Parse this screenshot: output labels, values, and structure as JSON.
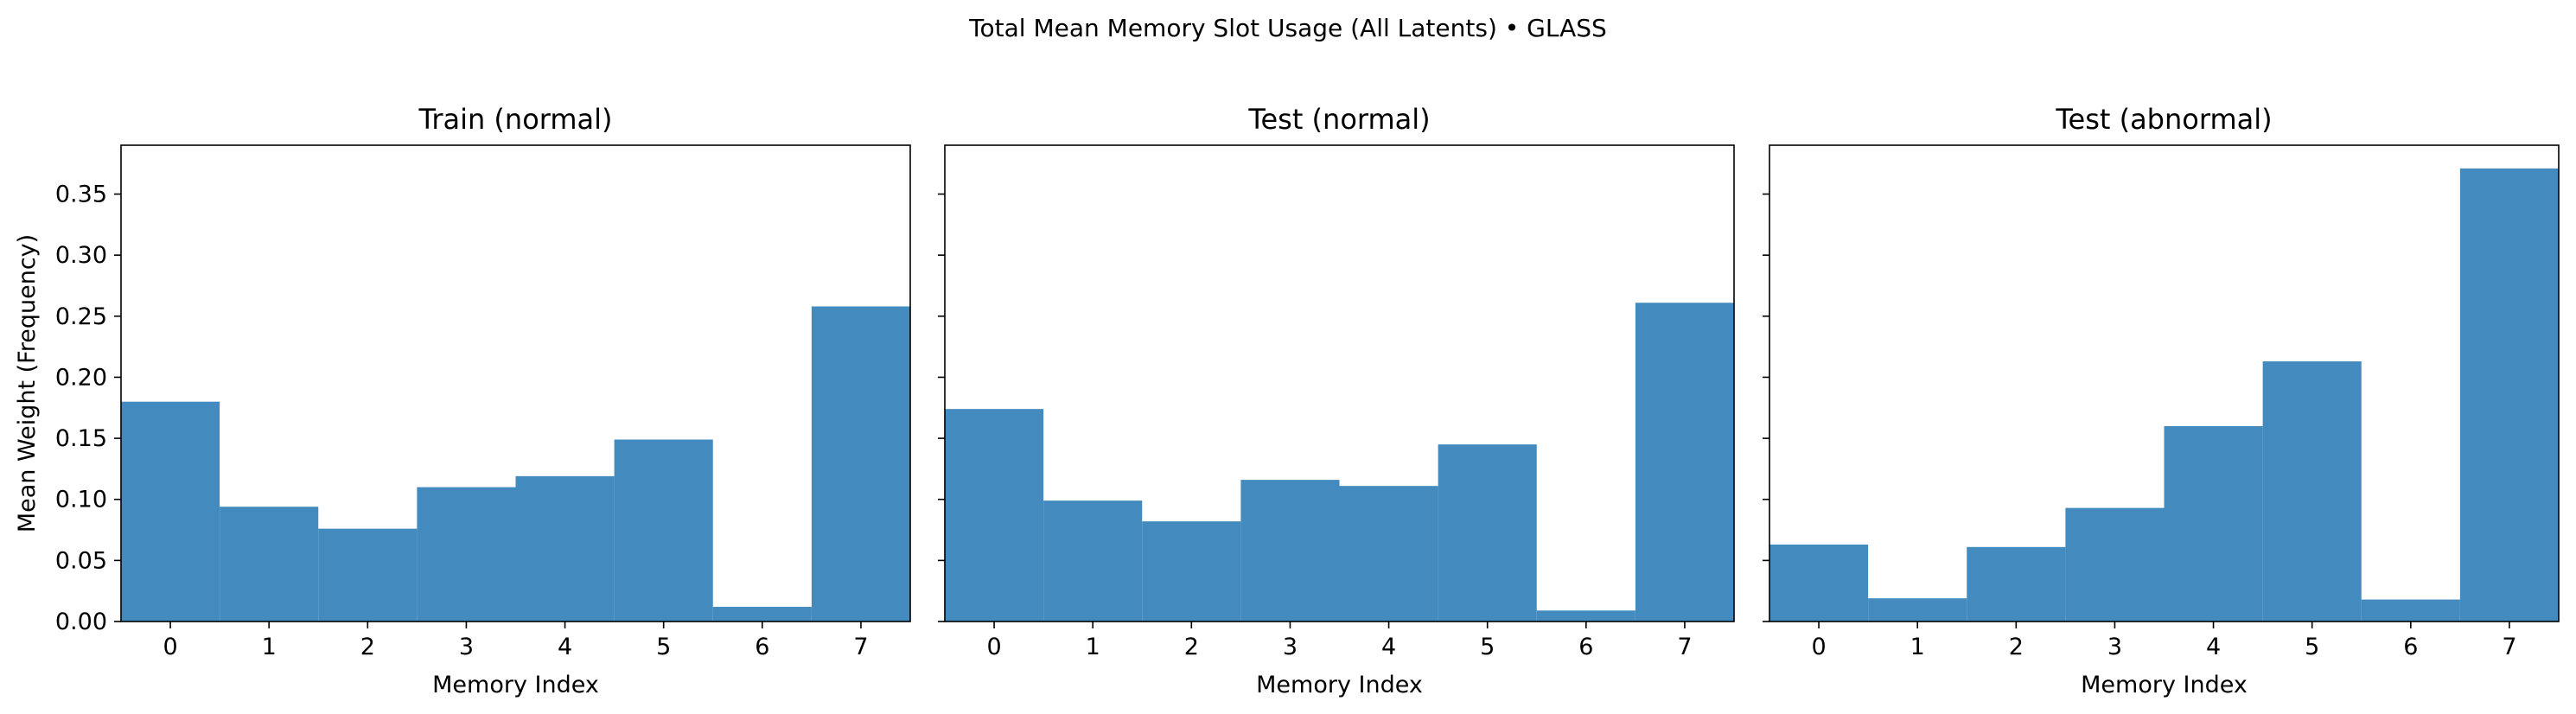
{
  "figure": {
    "suptitle": "Total Mean Memory Slot Usage (All Latents) • GLASS",
    "bar_color": "#438bbf",
    "ylabel": "Mean Weight (Frequency)",
    "xlabel": "Memory Index"
  },
  "chart_data": [
    {
      "type": "bar",
      "title": "Train (normal)",
      "xlabel": "Memory Index",
      "ylabel": "Mean Weight (Frequency)",
      "categories": [
        "0",
        "1",
        "2",
        "3",
        "4",
        "5",
        "6",
        "7"
      ],
      "values": [
        0.18,
        0.094,
        0.076,
        0.11,
        0.119,
        0.149,
        0.012,
        0.258
      ],
      "ylim": [
        0,
        0.39
      ],
      "yticks": [
        "0.00",
        "0.05",
        "0.10",
        "0.15",
        "0.20",
        "0.25",
        "0.30",
        "0.35"
      ],
      "grid": false,
      "legend": "none"
    },
    {
      "type": "bar",
      "title": "Test (normal)",
      "xlabel": "Memory Index",
      "categories": [
        "0",
        "1",
        "2",
        "3",
        "4",
        "5",
        "6",
        "7"
      ],
      "values": [
        0.174,
        0.099,
        0.082,
        0.116,
        0.111,
        0.145,
        0.009,
        0.261
      ],
      "ylim": [
        0,
        0.39
      ],
      "grid": false,
      "legend": "none"
    },
    {
      "type": "bar",
      "title": "Test (abnormal)",
      "xlabel": "Memory Index",
      "categories": [
        "0",
        "1",
        "2",
        "3",
        "4",
        "5",
        "6",
        "7"
      ],
      "values": [
        0.063,
        0.019,
        0.061,
        0.093,
        0.16,
        0.213,
        0.018,
        0.371
      ],
      "ylim": [
        0,
        0.39
      ],
      "grid": false,
      "legend": "none"
    }
  ]
}
